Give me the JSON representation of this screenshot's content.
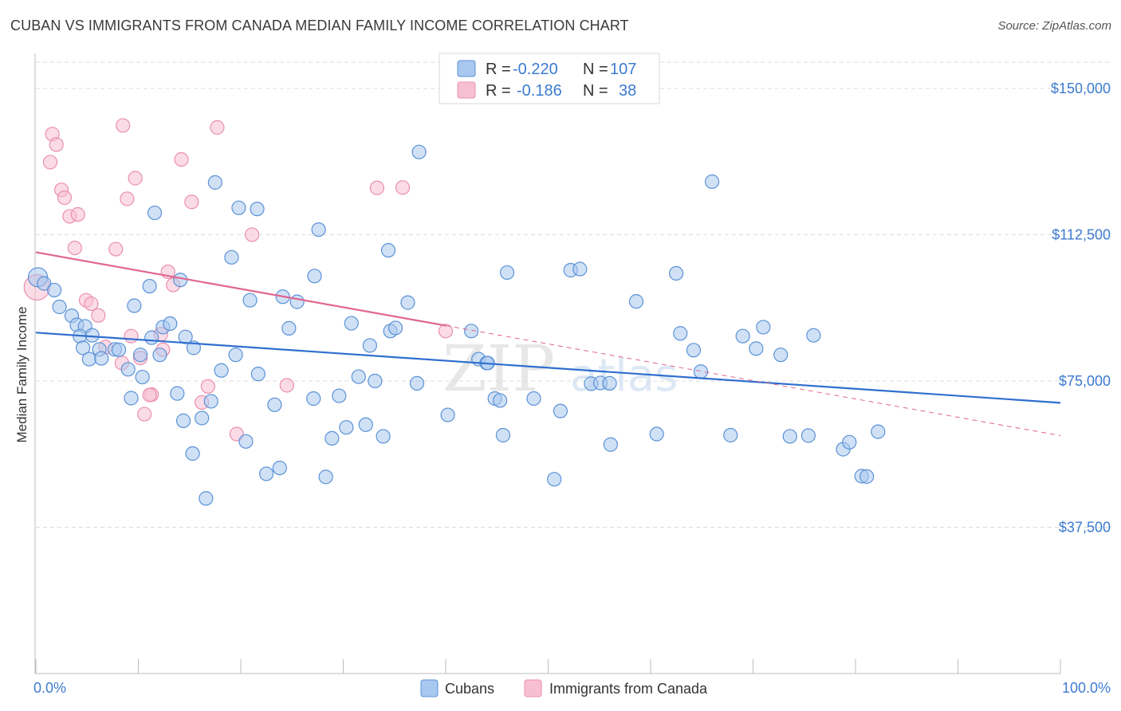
{
  "header": {
    "title": "CUBAN VS IMMIGRANTS FROM CANADA MEDIAN FAMILY INCOME CORRELATION CHART",
    "source": "Source: ZipAtlas.com"
  },
  "watermark": {
    "zip": "ZIP",
    "atlas": "atlas"
  },
  "legend": {
    "r_label": "R =",
    "n_label": "N =",
    "rows": [
      {
        "series": "Cubans",
        "r": "-0.220",
        "n": "107",
        "color": "#6fa3e0"
      },
      {
        "series": "Immigrants from Canada",
        "r": "-0.186",
        "n": "38",
        "color": "#f08fb0"
      }
    ]
  },
  "bottom_legend": [
    "Cubans",
    "Immigrants from Canada"
  ],
  "colors": {
    "blue_fill": "#a9c8ef",
    "blue_stroke": "#5b92d6",
    "blue_line": "#2f6fcf",
    "pink_fill": "#f7c0d2",
    "pink_stroke": "#ea8fae",
    "pink_line": "#e0668f"
  },
  "chart_data": {
    "type": "scatter",
    "title": "CUBAN VS IMMIGRANTS FROM CANADA MEDIAN FAMILY INCOME CORRELATION CHART",
    "xlabel": "",
    "ylabel": "Median Family Income",
    "xlim": [
      0,
      100
    ],
    "ylim": [
      0,
      160000
    ],
    "x_tick_labels": [
      "0.0%",
      "100.0%"
    ],
    "y_ticks": [
      37500,
      75000,
      112500,
      150000
    ],
    "y_tick_labels": [
      "$37,500",
      "$75,000",
      "$112,500",
      "$150,000"
    ],
    "grid": "horizontal dashed",
    "legend_position": "top-center",
    "series": [
      {
        "name": "Cubans",
        "trend": {
          "x": [
            0,
            100
          ],
          "y": [
            87400,
            69400
          ]
        },
        "points": [
          [
            0.2,
            101600
          ],
          [
            0.8,
            100000
          ],
          [
            1.8,
            98300
          ],
          [
            2.3,
            94000
          ],
          [
            3.5,
            91700
          ],
          [
            4,
            89400
          ],
          [
            4.8,
            89000
          ],
          [
            4.3,
            86500
          ],
          [
            5.5,
            86700
          ],
          [
            4.6,
            83500
          ],
          [
            6.2,
            83100
          ],
          [
            5.2,
            80600
          ],
          [
            6.4,
            80800
          ],
          [
            7.7,
            83100
          ],
          [
            8.1,
            83000
          ],
          [
            9.3,
            70600
          ],
          [
            9,
            78000
          ],
          [
            9.6,
            94300
          ],
          [
            10.4,
            76000
          ],
          [
            10.2,
            81700
          ],
          [
            11.1,
            99300
          ],
          [
            11.6,
            118100
          ],
          [
            11.3,
            86100
          ],
          [
            12.1,
            81700
          ],
          [
            12.4,
            88800
          ],
          [
            13.1,
            89700
          ],
          [
            13.8,
            71800
          ],
          [
            14.1,
            100900
          ],
          [
            14.6,
            86300
          ],
          [
            14.4,
            64800
          ],
          [
            15.4,
            83500
          ],
          [
            15.3,
            56400
          ],
          [
            16.2,
            65500
          ],
          [
            16.6,
            44900
          ],
          [
            17.1,
            69800
          ],
          [
            17.5,
            125900
          ],
          [
            18.1,
            77700
          ],
          [
            19.1,
            106700
          ],
          [
            19.5,
            81700
          ],
          [
            19.8,
            119400
          ],
          [
            20.5,
            59500
          ],
          [
            20.9,
            95700
          ],
          [
            21.6,
            119100
          ],
          [
            21.7,
            76800
          ],
          [
            22.5,
            51200
          ],
          [
            23.3,
            68900
          ],
          [
            23.8,
            52700
          ],
          [
            24.1,
            96600
          ],
          [
            24.7,
            88500
          ],
          [
            25.5,
            95300
          ],
          [
            27.1,
            70500
          ],
          [
            27.2,
            101900
          ],
          [
            27.6,
            113800
          ],
          [
            28.3,
            50400
          ],
          [
            28.9,
            60300
          ],
          [
            29.6,
            71200
          ],
          [
            30.3,
            63100
          ],
          [
            30.8,
            89800
          ],
          [
            31.5,
            76100
          ],
          [
            32.2,
            63800
          ],
          [
            32.6,
            84100
          ],
          [
            33.1,
            75000
          ],
          [
            33.9,
            60800
          ],
          [
            34.4,
            108500
          ],
          [
            34.6,
            87800
          ],
          [
            35.1,
            88600
          ],
          [
            36.3,
            95100
          ],
          [
            37.2,
            74400
          ],
          [
            37.4,
            133700
          ],
          [
            40.2,
            66300
          ],
          [
            42.5,
            87800
          ],
          [
            43.2,
            80600
          ],
          [
            44,
            79600
          ],
          [
            44.1,
            79600
          ],
          [
            44.8,
            70500
          ],
          [
            45.3,
            70000
          ],
          [
            45.6,
            61100
          ],
          [
            46,
            102800
          ],
          [
            48.6,
            70500
          ],
          [
            50.6,
            49800
          ],
          [
            51.2,
            67300
          ],
          [
            52.2,
            103400
          ],
          [
            53.1,
            103700
          ],
          [
            54.2,
            74300
          ],
          [
            55.1,
            74500
          ],
          [
            56,
            74400
          ],
          [
            56.1,
            58700
          ],
          [
            58.6,
            95400
          ],
          [
            60.6,
            61400
          ],
          [
            62.5,
            102600
          ],
          [
            62.9,
            87200
          ],
          [
            64.2,
            82900
          ],
          [
            64.9,
            77400
          ],
          [
            66,
            126100
          ],
          [
            67.8,
            61100
          ],
          [
            69,
            86500
          ],
          [
            70.3,
            83300
          ],
          [
            71,
            88800
          ],
          [
            72.7,
            81700
          ],
          [
            73.6,
            60800
          ],
          [
            75.4,
            61000
          ],
          [
            75.9,
            86700
          ],
          [
            78.8,
            57500
          ],
          [
            79.4,
            59300
          ],
          [
            80.6,
            50600
          ],
          [
            81.1,
            50500
          ],
          [
            82.2,
            62000
          ]
        ]
      },
      {
        "name": "Immigrants from Canada",
        "trend": {
          "x": [
            0,
            40
          ],
          "y": [
            108000,
            89200
          ]
        },
        "points": [
          [
            0.1,
            99000
          ],
          [
            1.4,
            131100
          ],
          [
            1.6,
            138300
          ],
          [
            2,
            135600
          ],
          [
            2.5,
            124000
          ],
          [
            2.8,
            122000
          ],
          [
            3.3,
            117200
          ],
          [
            3.8,
            109100
          ],
          [
            4.1,
            117700
          ],
          [
            4.9,
            95700
          ],
          [
            5.4,
            94800
          ],
          [
            6.1,
            91800
          ],
          [
            6.8,
            83700
          ],
          [
            7.8,
            108800
          ],
          [
            8.4,
            79600
          ],
          [
            8.5,
            140500
          ],
          [
            8.9,
            121700
          ],
          [
            9.3,
            86500
          ],
          [
            9.7,
            127000
          ],
          [
            10.2,
            80900
          ],
          [
            10.6,
            66500
          ],
          [
            11.3,
            71500
          ],
          [
            11.1,
            71400
          ],
          [
            12.2,
            87000
          ],
          [
            12.4,
            83000
          ],
          [
            12.9,
            103000
          ],
          [
            13.4,
            99600
          ],
          [
            14.2,
            131800
          ],
          [
            15.2,
            120900
          ],
          [
            16.2,
            69500
          ],
          [
            16.8,
            73600
          ],
          [
            17.7,
            140000
          ],
          [
            19.6,
            61400
          ],
          [
            21.1,
            112500
          ],
          [
            24.5,
            73900
          ],
          [
            33.3,
            124500
          ],
          [
            35.8,
            124600
          ],
          [
            40,
            87800
          ]
        ]
      }
    ]
  }
}
